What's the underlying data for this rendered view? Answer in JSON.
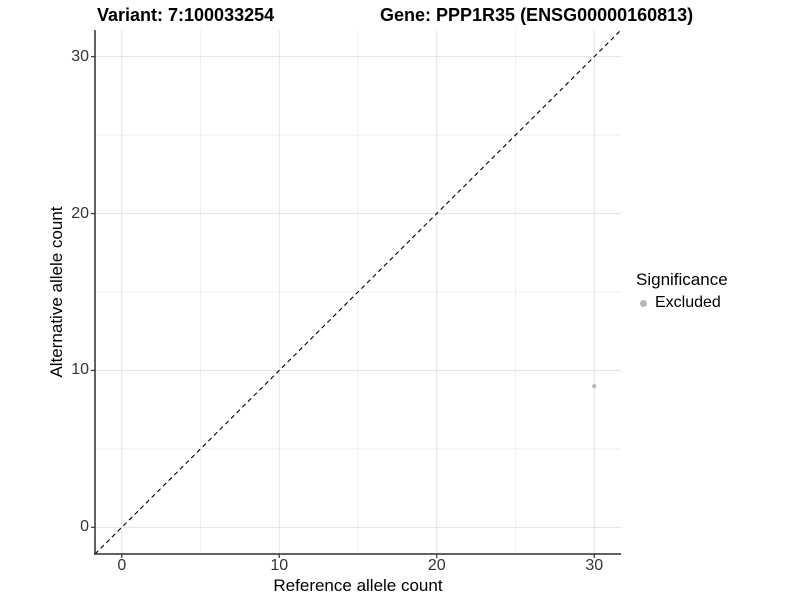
{
  "header": {
    "variant_title": "Variant: 7:100033254",
    "gene_title": "Gene: PPP1R35 (ENSG00000160813)"
  },
  "legend": {
    "title": "Significance",
    "items": [
      {
        "label": "Excluded",
        "color": "#b5b5b5"
      }
    ]
  },
  "chart_data": {
    "type": "scatter",
    "title": "Variant: 7:100033254 | Gene: PPP1R35 (ENSG00000160813)",
    "xlabel": "Reference allele count",
    "ylabel": "Alternative allele count",
    "xlim": [
      -1.7,
      31.7
    ],
    "ylim": [
      -1.7,
      31.7
    ],
    "x_ticks": [
      0,
      10,
      20,
      30
    ],
    "y_ticks": [
      0,
      10,
      20,
      30
    ],
    "x_minor_ticks": [
      5,
      15,
      25
    ],
    "y_minor_ticks": [
      5,
      15,
      25
    ],
    "grid": "major+minor",
    "legend_position": "right",
    "series": [
      {
        "name": "Excluded",
        "color": "#b5b5b5",
        "marker": "circle",
        "points": [
          {
            "x": 30,
            "y": 9
          }
        ]
      }
    ],
    "reference_line": {
      "kind": "identity y=x",
      "style": "dashed",
      "color": "#000000",
      "from": -1.7,
      "to": 31.7
    }
  },
  "style": {
    "background": "#ffffff",
    "axis_line_color": "#2e2e2e",
    "tick_mark_color": "#333333",
    "tick_label_color": "#333333",
    "grid_major_color": "#e3e3e3",
    "grid_minor_color": "#efefef",
    "point_color": "#b5b5b5",
    "dashed_line_color": "#000000"
  }
}
